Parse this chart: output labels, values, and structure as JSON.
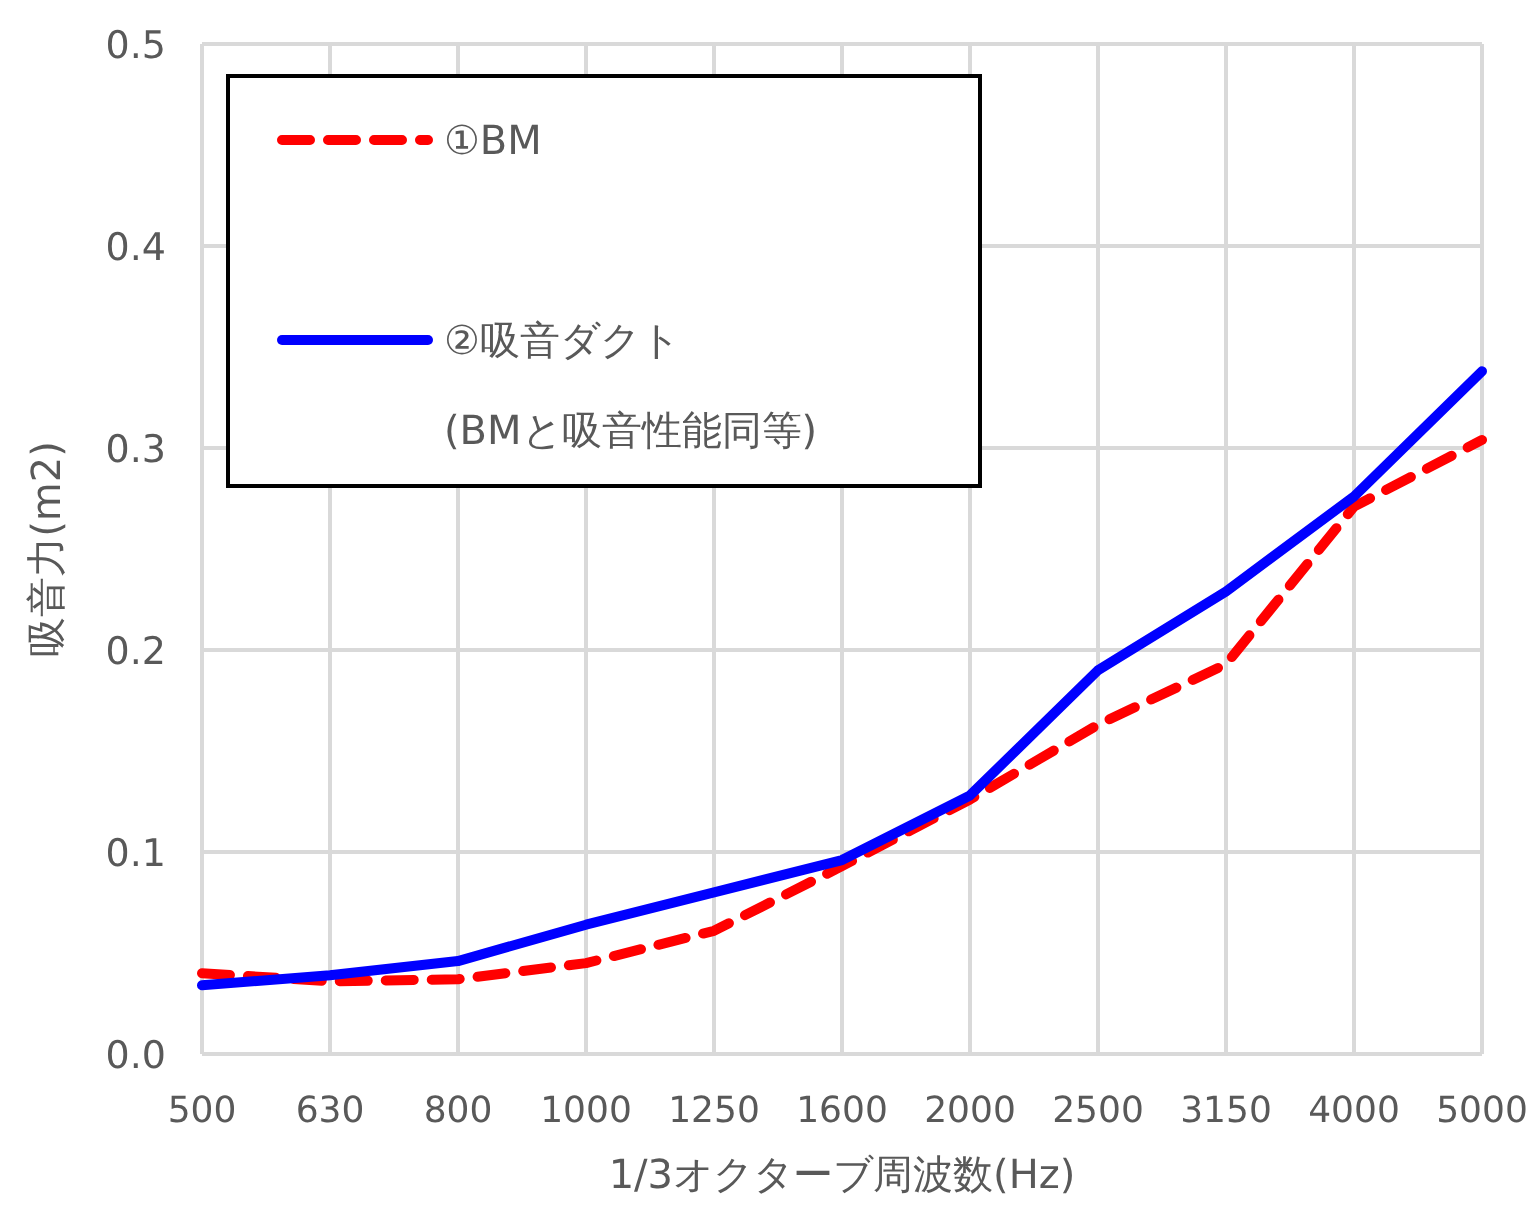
{
  "chart_data": {
    "type": "line",
    "xlabel": "1/3オクターブ周波数(Hz)",
    "ylabel": "吸音力(m2)",
    "categories": [
      "500",
      "630",
      "800",
      "1000",
      "1250",
      "1600",
      "2000",
      "2500",
      "3150",
      "4000",
      "5000"
    ],
    "series": [
      {
        "name": "①BM",
        "color": "#ff0000",
        "line_style": "dashed",
        "values": [
          0.04,
          0.036,
          0.037,
          0.045,
          0.061,
          0.093,
          0.126,
          0.163,
          0.193,
          0.271,
          0.304
        ]
      },
      {
        "name": "②吸音ダクト\n(BMと吸音性能同等)",
        "color": "#0000ff",
        "line_style": "solid",
        "values": [
          0.034,
          0.039,
          0.046,
          0.064,
          0.08,
          0.096,
          0.128,
          0.19,
          0.229,
          0.276,
          0.338
        ]
      }
    ],
    "ylim": [
      0,
      0.5
    ],
    "yticks": [
      {
        "value": 0,
        "label": "0.0"
      },
      {
        "value": 0.1,
        "label": "0.1"
      },
      {
        "value": 0.2,
        "label": "0.2"
      },
      {
        "value": 0.3,
        "label": "0.3"
      },
      {
        "value": 0.4,
        "label": "0.4"
      },
      {
        "value": 0.5,
        "label": "0.5"
      }
    ],
    "grid": true,
    "legend": "top left",
    "marker": "none"
  }
}
